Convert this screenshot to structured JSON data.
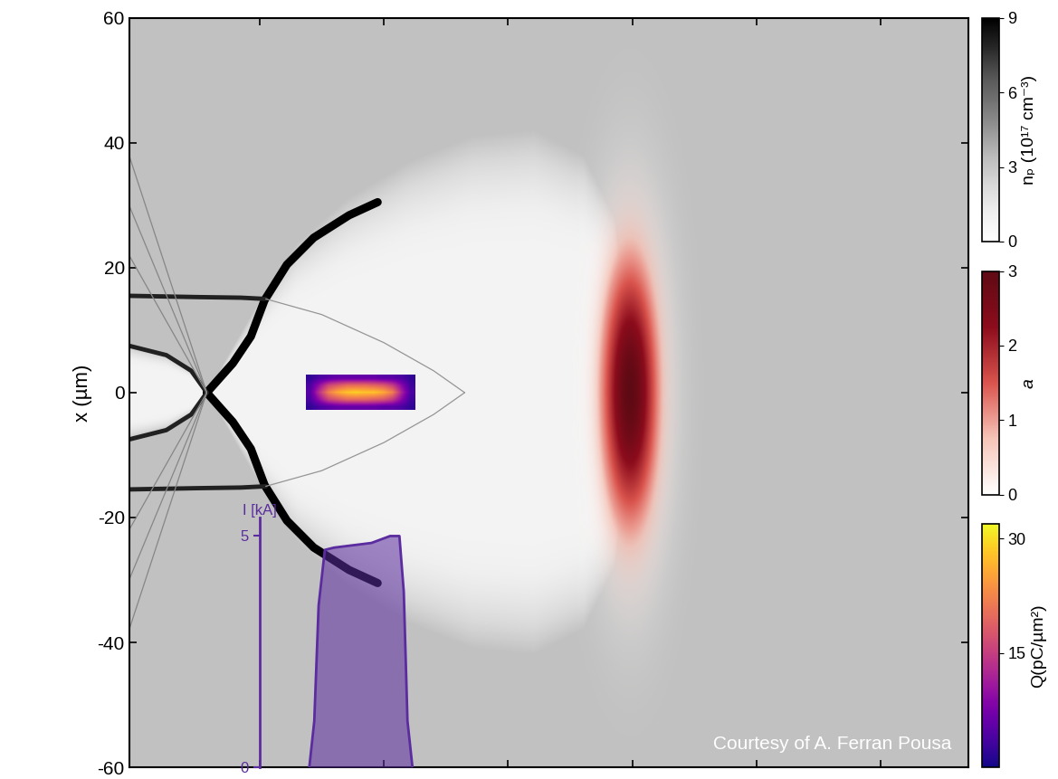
{
  "chart_data": {
    "type": "field_map",
    "y_label": "x (µm)",
    "xlim": [
      -21,
      114
    ],
    "xticks": [
      0,
      20,
      40,
      60,
      80,
      100
    ],
    "ylim": [
      -60,
      60
    ],
    "yticks": [
      -60,
      -40,
      -20,
      0,
      20,
      40,
      60
    ],
    "tick_labels": "y",
    "credit": "Courtesy of A. Ferran Pousa",
    "plasma_density": {
      "label": "nₚ (10¹⁷ cm⁻³)",
      "clim": [
        0,
        9
      ],
      "ticks": [
        0,
        3,
        6,
        9
      ],
      "background": 3.2,
      "cavities": [
        {
          "xi": [
            -8.5,
            -4,
            0,
            6,
            14,
            24,
            34,
            44,
            52,
            57,
            61
          ],
          "half_width": [
            0,
            8,
            15,
            24,
            31,
            37,
            41,
            42,
            38,
            28,
            0
          ],
          "density": 0.9
        },
        {
          "xi": [
            -21,
            -15,
            -11,
            -8.5
          ],
          "half_width": [
            7.5,
            6,
            3.5,
            0
          ],
          "density": 0.9
        }
      ],
      "lines": [
        {
          "xi": [
            -8.5,
            -4.3,
            -1.4,
            0.8,
            4.4,
            8.7,
            14.4,
            19
          ],
          "x": [
            0,
            4.7,
            9,
            14.8,
            20.5,
            24.8,
            28.4,
            30.5
          ],
          "density": 9
        },
        {
          "xi": [
            -8.5,
            -4.3,
            -1.4,
            0.8,
            4.4,
            8.7,
            14.4,
            19
          ],
          "x": [
            0,
            -4.7,
            -9,
            -14.8,
            -20.5,
            -24.8,
            -28.4,
            -30.5
          ],
          "density": 9
        },
        {
          "xi": [
            -21,
            -10,
            -3,
            1
          ],
          "x": [
            15.5,
            15.3,
            15.2,
            15
          ],
          "density": 8
        },
        {
          "xi": [
            -21,
            -10,
            -3,
            1
          ],
          "x": [
            -15.5,
            -15.3,
            -15.2,
            -15
          ],
          "density": 8
        },
        {
          "xi": [
            -21,
            -15,
            -11,
            -8.5
          ],
          "x": [
            7.5,
            6,
            3.5,
            0
          ],
          "density": 8
        },
        {
          "xi": [
            -21,
            -15,
            -11,
            -8.5
          ],
          "x": [
            -7.5,
            -6,
            -3.5,
            0
          ],
          "density": 8
        },
        {
          "xi": [
            -8.5,
            -21
          ],
          "x": [
            0,
            38
          ],
          "density": 5
        },
        {
          "xi": [
            -8.5,
            -21
          ],
          "x": [
            0,
            -38
          ],
          "density": 5
        },
        {
          "xi": [
            -8.5,
            -21
          ],
          "x": [
            0,
            30
          ],
          "density": 5
        },
        {
          "xi": [
            -8.5,
            -21
          ],
          "x": [
            0,
            -30
          ],
          "density": 5
        },
        {
          "xi": [
            -8.5,
            -21
          ],
          "x": [
            0,
            22
          ],
          "density": 5
        },
        {
          "xi": [
            -8.5,
            -21
          ],
          "x": [
            0,
            -22
          ],
          "density": 5
        },
        {
          "xi": [
            1,
            10,
            20,
            28,
            33
          ],
          "x": [
            15,
            12.5,
            8,
            3.5,
            0
          ],
          "density": 4.5
        },
        {
          "xi": [
            1,
            10,
            20,
            28,
            33
          ],
          "x": [
            -15,
            -12.5,
            -8,
            -3.5,
            0
          ],
          "density": 4.5
        }
      ]
    },
    "laser": {
      "label": "a",
      "clim": [
        0,
        3
      ],
      "ticks": [
        0,
        1,
        2,
        3
      ],
      "a_peak": 3,
      "center": 59.5,
      "rms_length": 3.2,
      "rms_width": 15
    },
    "bunch_charge": {
      "label": "Q(pC/µm²)",
      "clim": [
        0,
        32
      ],
      "ticks": [
        15,
        30
      ],
      "xi_range": [
        7.5,
        25
      ],
      "x_range": [
        -2.8,
        2.8
      ],
      "cells": [
        [
          2,
          4,
          5,
          6,
          6,
          6,
          6,
          6,
          5,
          5,
          4,
          2
        ],
        [
          4,
          10,
          16,
          18,
          20,
          20,
          20,
          19,
          18,
          15,
          9,
          3
        ],
        [
          5,
          14,
          22,
          26,
          28,
          29,
          28,
          28,
          26,
          22,
          12,
          4
        ],
        [
          4,
          10,
          16,
          18,
          20,
          20,
          20,
          19,
          18,
          15,
          9,
          3
        ],
        [
          2,
          4,
          5,
          6,
          6,
          6,
          6,
          6,
          5,
          5,
          4,
          2
        ]
      ]
    },
    "current": {
      "label": "I [kA]",
      "ylim": [
        0,
        5.4
      ],
      "yticks": [
        0,
        5
      ],
      "xlim": [
        0,
        40
      ],
      "xi": [
        8.0,
        8.8,
        9.5,
        10.5,
        12,
        15,
        18,
        21,
        22.5,
        23.2,
        23.8,
        24.6
      ],
      "values": [
        0,
        1.0,
        3.5,
        4.7,
        4.75,
        4.8,
        4.85,
        5.0,
        5.0,
        3.8,
        1.0,
        0
      ],
      "color": "#5b2c9f"
    }
  }
}
